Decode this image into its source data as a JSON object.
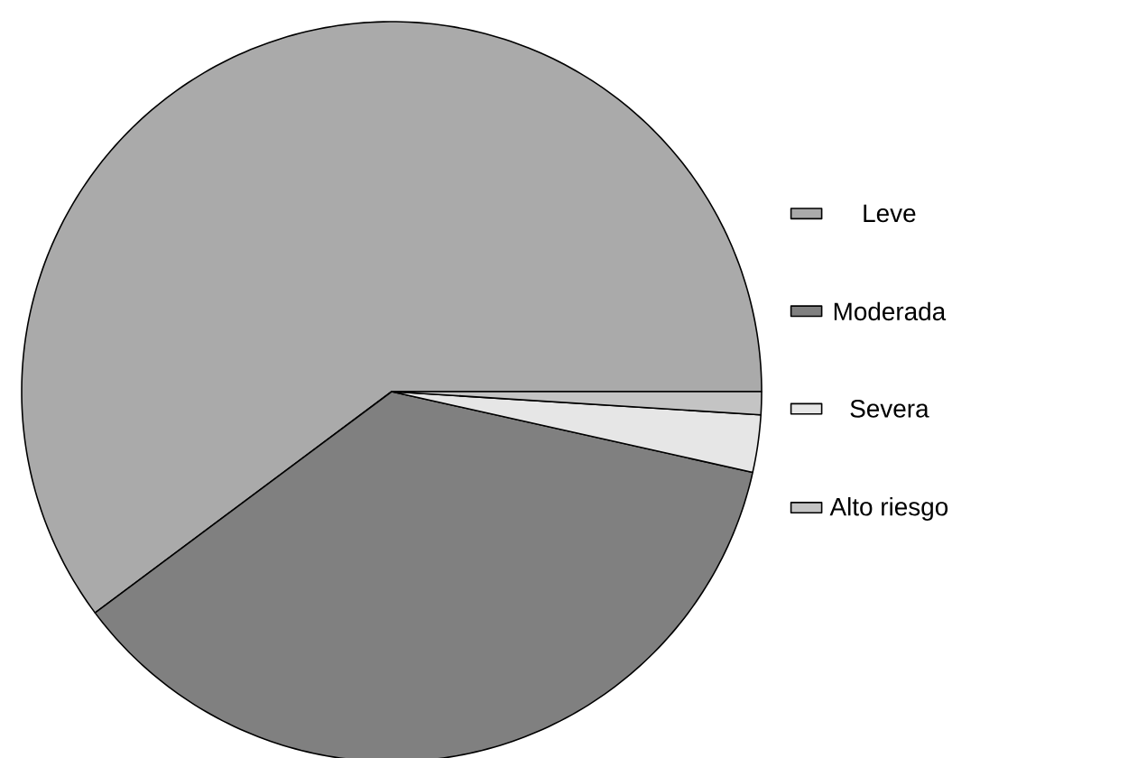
{
  "chart_data": {
    "type": "pie",
    "categories": [
      "Leve",
      "Moderada",
      "Severa",
      "Alto riesgo"
    ],
    "values": [
      60.2,
      36.3,
      2.5,
      1.0
    ],
    "colors": [
      "#aaaaaa",
      "#808080",
      "#e6e6e6",
      "#c4c4c4"
    ],
    "legend": "right"
  }
}
